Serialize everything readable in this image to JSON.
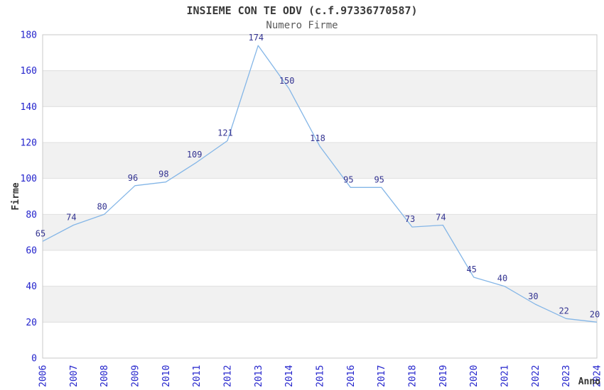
{
  "chart_data": {
    "type": "line",
    "title": "INSIEME CON TE ODV (c.f.97336770587)",
    "subtitle": "Numero Firme",
    "xlabel": "Anno",
    "ylabel": "Firme",
    "x": [
      "2006",
      "2007",
      "2008",
      "2009",
      "2010",
      "2011",
      "2012",
      "2013",
      "2014",
      "2015",
      "2016",
      "2017",
      "2018",
      "2019",
      "2020",
      "2021",
      "2022",
      "2023",
      "2024"
    ],
    "series": [
      {
        "name": "Numero Firme",
        "values": [
          65,
          74,
          80,
          96,
          98,
          109,
          121,
          174,
          150,
          118,
          95,
          95,
          73,
          74,
          45,
          40,
          30,
          22,
          20
        ]
      }
    ],
    "ylim": [
      0,
      180
    ],
    "yticks": [
      0,
      20,
      40,
      60,
      80,
      100,
      120,
      140,
      160,
      180
    ],
    "grid": "horizontal-lines-with-alternating-bands",
    "legend": "none",
    "data_labels": "visible",
    "colors": {
      "line": "#84b6e7",
      "tick_label": "#2323cc",
      "data_label": "#333391",
      "band": "#f1f1f1",
      "grid_line": "#dfdfdf",
      "plot_border": "#c9c9c9",
      "title": "#3a3a3a",
      "subtitle": "#5a5a5a",
      "axis_label": "#333333",
      "background": "#ffffff"
    }
  }
}
